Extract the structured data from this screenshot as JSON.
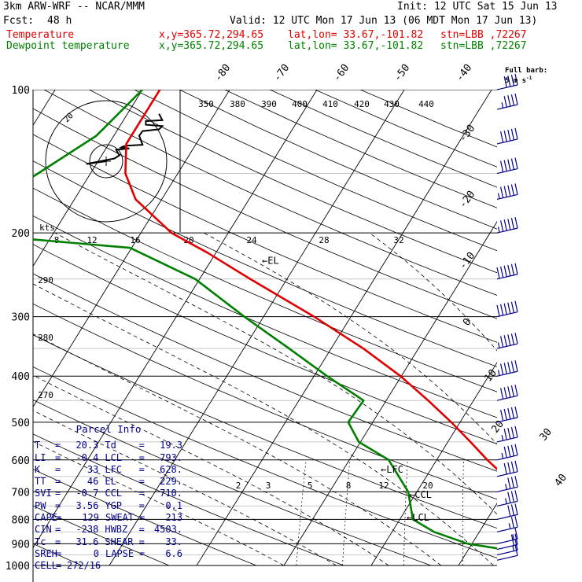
{
  "header": {
    "model": "3km ARW-WRF -- NCAR/MMM",
    "init": "Init: 12 UTC Sat 15 Jun 13",
    "fcst_label": "Fcst:",
    "fcst_value": "48 h",
    "valid": "Valid: 12 UTC Mon 17 Jun 13 (06 MDT Mon 17 Jun 13)",
    "temp_label": "Temperature",
    "dew_label": "Dewpoint temperature",
    "xy": "x,y=365.72,294.65",
    "latlon": "lat,lon= 33.67,-101.82",
    "stn": "stn=LBB ,72267"
  },
  "barb_legend": {
    "line1": "Full barb:",
    "line2": "5 m s",
    "sup": "-1"
  },
  "colors": {
    "temperature": "#e00000",
    "dewpoint": "#008000",
    "axes": "#000000",
    "wind": "#00008b",
    "frame": "#000000"
  },
  "chart_data": {
    "type": "line",
    "diagram": "skew-T log-p",
    "y_axis_pressure_ticks": [
      100,
      200,
      300,
      400,
      500,
      600,
      700,
      800,
      900,
      1000
    ],
    "isotherm_labels": [
      "-80",
      "-70",
      "-60",
      "-50",
      "-40",
      "-30",
      "-20",
      "-10",
      "0",
      "10",
      "20",
      "30",
      "40"
    ],
    "theta_labels_top": [
      "380",
      "390",
      "400",
      "410",
      "420",
      "430",
      "440",
      "350"
    ],
    "theta_labels_left": [
      "290",
      "280",
      "270"
    ],
    "mixing_ratio_labels": [
      "2",
      "3",
      "5",
      "8",
      "12",
      "20"
    ],
    "hodograph_speed_labels": [
      "kts",
      "8",
      "12",
      "16",
      "20",
      "24",
      "28",
      "32"
    ],
    "hodograph_ring_label": "20",
    "annotations": [
      "EL",
      "LFC",
      "CCL",
      "LCL"
    ],
    "series": [
      {
        "name": "Temperature",
        "points": [
          [
            1000,
            31.6
          ],
          [
            950,
            28.5
          ],
          [
            925,
            27.2
          ],
          [
            900,
            26.6
          ],
          [
            850,
            22.6
          ],
          [
            800,
            19.3
          ],
          [
            750,
            15.6
          ],
          [
            700,
            12.5
          ],
          [
            650,
            9.0
          ],
          [
            600,
            5.8
          ],
          [
            550,
            2.6
          ],
          [
            500,
            -1.0
          ],
          [
            450,
            -5.2
          ],
          [
            400,
            -10.1
          ],
          [
            350,
            -16.3
          ],
          [
            300,
            -24.2
          ],
          [
            250,
            -34.2
          ],
          [
            220,
            -41.0
          ],
          [
            200,
            -46.5
          ],
          [
            170,
            -53.0
          ],
          [
            150,
            -56.0
          ],
          [
            130,
            -58.0
          ],
          [
            100,
            -58.0
          ]
        ]
      },
      {
        "name": "Dewpoint temperature",
        "points": [
          [
            1000,
            20.3
          ],
          [
            950,
            18.8
          ],
          [
            925,
            14.0
          ],
          [
            900,
            9.5
          ],
          [
            850,
            4.8
          ],
          [
            800,
            1.5
          ],
          [
            700,
            -1.0
          ],
          [
            600,
            -5.5
          ],
          [
            550,
            -10.2
          ],
          [
            500,
            -12.8
          ],
          [
            450,
            -12.6
          ],
          [
            400,
            -18.5
          ],
          [
            350,
            -24.8
          ],
          [
            300,
            -32.2
          ],
          [
            250,
            -40.5
          ],
          [
            215,
            -50.2
          ],
          [
            200,
            -71.0
          ],
          [
            180,
            -70.0
          ],
          [
            150,
            -66.0
          ],
          [
            125,
            -62.0
          ],
          [
            100,
            -60.0
          ]
        ]
      }
    ],
    "hodograph_path": [
      [
        0,
        0
      ],
      [
        -12,
        -6
      ],
      [
        5,
        6
      ],
      [
        8,
        13
      ],
      [
        6,
        25
      ],
      [
        14,
        28
      ],
      [
        9,
        30
      ],
      [
        10,
        32
      ],
      [
        12,
        34
      ],
      [
        22,
        36
      ],
      [
        20,
        56
      ],
      [
        22,
        66
      ],
      [
        32,
        70
      ],
      [
        34,
        77
      ],
      [
        24,
        80
      ],
      [
        24,
        88
      ],
      [
        34,
        90
      ],
      [
        32,
        104
      ]
    ],
    "wind_barbs_knots_at_pressure": [
      [
        975,
        10
      ],
      [
        950,
        15
      ],
      [
        925,
        20
      ],
      [
        900,
        15
      ],
      [
        850,
        25
      ],
      [
        800,
        30
      ],
      [
        750,
        35
      ],
      [
        700,
        35
      ],
      [
        650,
        40
      ],
      [
        600,
        45
      ],
      [
        550,
        45
      ],
      [
        500,
        50
      ],
      [
        450,
        50
      ],
      [
        400,
        55
      ],
      [
        350,
        55
      ],
      [
        300,
        60
      ],
      [
        250,
        60
      ],
      [
        200,
        55
      ],
      [
        170,
        55
      ],
      [
        150,
        50
      ],
      [
        130,
        50
      ],
      [
        110,
        45
      ],
      [
        100,
        40
      ]
    ]
  },
  "parcel_info": {
    "title": "Parcel Info",
    "rows": [
      [
        "T",
        "=",
        "20.3",
        "Td",
        "=",
        "19.3"
      ],
      [
        "LI",
        "=",
        "-0.4",
        "LCL",
        "=",
        "793."
      ],
      [
        "K",
        "=",
        "33",
        "LFC",
        "=",
        "628."
      ],
      [
        "TT",
        "=",
        "46",
        "EL",
        "=",
        "229."
      ],
      [
        "SVI",
        "=",
        "-0.7",
        "CCL",
        "=",
        "710."
      ],
      [
        "PW",
        "=",
        "3.56",
        "YGP",
        "=",
        "0.1"
      ],
      [
        "CAPE",
        "=",
        "129",
        "SWEAT",
        "=",
        "213"
      ],
      [
        "CIN",
        "=",
        "-238",
        "HWBZ",
        "=",
        "4503."
      ],
      [
        "Tc",
        "=",
        "31.6",
        "SHEAR",
        "=",
        "33."
      ],
      [
        "SREH",
        "=",
        "0",
        "LAPSE",
        "=",
        "6.6"
      ],
      [
        "CELL",
        "=",
        "272/16",
        "",
        "",
        ""
      ]
    ]
  }
}
